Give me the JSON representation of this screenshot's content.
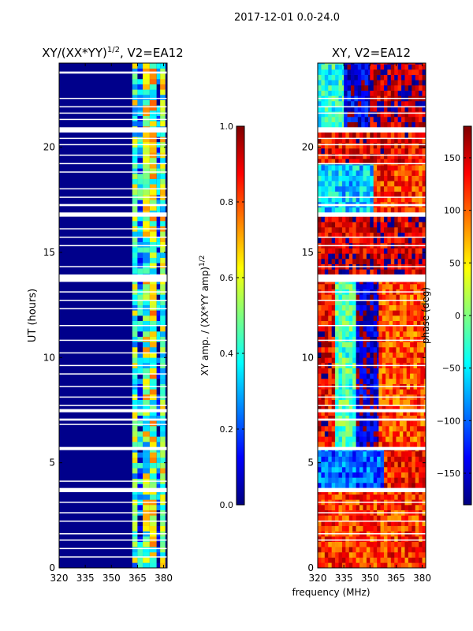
{
  "suptitle": "2017-12-01 0.0-24.0",
  "shared_xlabel": "frequency (MHz)",
  "colors": {
    "jet": [
      "#00007f",
      "#0000ff",
      "#007fff",
      "#00ffff",
      "#7fff7f",
      "#ffff00",
      "#ff7f00",
      "#ff0000",
      "#7f0000"
    ],
    "background_amp": "#00008b",
    "gap": "#ffffff"
  },
  "chart_data": [
    {
      "type": "heatmap",
      "title": "XY/(XX*YY)$^{1/2}$, V2=EA12",
      "title_display": {
        "base": "XY/(XX*YY)",
        "sup": "1/2",
        "rest": ", V2=EA12"
      },
      "xlabel": "",
      "ylabel": "UT (hours)",
      "xlim": [
        320,
        382
      ],
      "ylim": [
        0,
        24
      ],
      "xticks": [
        320,
        335,
        350,
        365,
        380
      ],
      "yticks": [
        0,
        5,
        10,
        15,
        20
      ],
      "colorbar": {
        "label": "XY amp. / (XX*YY amp)$^{1/2}$",
        "label_display": {
          "base": "XY amp. / (XX*YY amp)",
          "sup": "1/2"
        },
        "range": [
          0,
          1.0
        ],
        "ticks": [
          0.0,
          0.2,
          0.4,
          0.6,
          0.8,
          1.0
        ],
        "tick_labels": [
          "0.0",
          "0.2",
          "0.4",
          "0.6",
          "0.8",
          "1.0"
        ]
      },
      "gaps_hours": [
        [
          23.5,
          23.6
        ],
        [
          22.3,
          22.35
        ],
        [
          21.9,
          21.95
        ],
        [
          21.6,
          21.65
        ],
        [
          21.3,
          21.35
        ],
        [
          20.7,
          20.95
        ],
        [
          20.4,
          20.45
        ],
        [
          20.1,
          20.15
        ],
        [
          19.6,
          19.65
        ],
        [
          19.2,
          19.25
        ],
        [
          18.8,
          18.85
        ],
        [
          18.0,
          18.05
        ],
        [
          17.6,
          17.65
        ],
        [
          17.2,
          17.3
        ],
        [
          16.7,
          16.9
        ],
        [
          16.1,
          16.15
        ],
        [
          15.7,
          15.75
        ],
        [
          15.3,
          15.35
        ],
        [
          14.3,
          14.35
        ],
        [
          13.6,
          13.95
        ],
        [
          13.1,
          13.15
        ],
        [
          12.7,
          12.75
        ],
        [
          12.3,
          12.35
        ],
        [
          11.5,
          11.55
        ],
        [
          10.8,
          10.85
        ],
        [
          10.2,
          10.25
        ],
        [
          9.6,
          9.65
        ],
        [
          9.2,
          9.25
        ],
        [
          8.6,
          8.65
        ],
        [
          8.1,
          8.15
        ],
        [
          7.7,
          7.75
        ],
        [
          7.4,
          7.55
        ],
        [
          7.0,
          7.1
        ],
        [
          6.8,
          6.85
        ],
        [
          5.6,
          5.75
        ],
        [
          4.1,
          4.15
        ],
        [
          3.6,
          3.8
        ],
        [
          3.1,
          3.15
        ],
        [
          2.6,
          2.65
        ],
        [
          2.2,
          2.25
        ],
        [
          1.6,
          1.65
        ],
        [
          1.3,
          1.35
        ],
        [
          0.9,
          0.95
        ],
        [
          0.5,
          0.55
        ]
      ],
      "freq_bands_mhz": [
        {
          "from": 320,
          "to": 362,
          "level": 0.08
        },
        {
          "from": 362,
          "to": 365,
          "level": 0.45
        },
        {
          "from": 365,
          "to": 368,
          "level": 0.25
        },
        {
          "from": 368,
          "to": 372,
          "level": 0.5
        },
        {
          "from": 372,
          "to": 376,
          "level": 0.55
        },
        {
          "from": 376,
          "to": 378,
          "level": 0.2
        },
        {
          "from": 378,
          "to": 381,
          "level": 0.5
        },
        {
          "from": 381,
          "to": 382,
          "level": 0.1
        }
      ]
    },
    {
      "type": "heatmap",
      "title": "XY, V2=EA12",
      "xlabel": "frequency (MHz)",
      "ylabel": "",
      "xlim": [
        320,
        382
      ],
      "ylim": [
        0,
        24
      ],
      "xticks": [
        320,
        335,
        350,
        365,
        380
      ],
      "yticks": [
        0,
        5,
        10,
        15,
        20
      ],
      "colorbar": {
        "label": "phase (deg)",
        "range": [
          -180,
          180
        ],
        "ticks": [
          -150,
          -100,
          -50,
          0,
          50,
          100,
          150
        ],
        "tick_labels": [
          "−150",
          "−100",
          "−50",
          "0",
          "50",
          "100",
          "150"
        ]
      },
      "gaps_hours": [
        [
          22.3,
          22.35
        ],
        [
          21.9,
          21.95
        ],
        [
          21.6,
          21.65
        ],
        [
          20.7,
          20.95
        ],
        [
          20.4,
          20.45
        ],
        [
          20.1,
          20.15
        ],
        [
          19.6,
          19.65
        ],
        [
          19.2,
          19.25
        ],
        [
          17.6,
          17.65
        ],
        [
          17.2,
          17.3
        ],
        [
          16.7,
          16.9
        ],
        [
          15.7,
          15.75
        ],
        [
          15.3,
          15.35
        ],
        [
          14.3,
          14.35
        ],
        [
          13.6,
          13.95
        ],
        [
          13.1,
          13.15
        ],
        [
          12.7,
          12.75
        ],
        [
          11.5,
          11.55
        ],
        [
          10.8,
          10.85
        ],
        [
          9.6,
          9.65
        ],
        [
          8.6,
          8.65
        ],
        [
          8.1,
          8.15
        ],
        [
          7.7,
          7.75
        ],
        [
          7.4,
          7.55
        ],
        [
          7.0,
          7.1
        ],
        [
          5.6,
          5.75
        ],
        [
          3.6,
          3.8
        ],
        [
          3.1,
          3.15
        ],
        [
          2.6,
          2.65
        ],
        [
          2.2,
          2.25
        ],
        [
          1.6,
          1.65
        ],
        [
          1.3,
          1.35
        ]
      ],
      "phase_regions": [
        {
          "t_from": 0,
          "t_to": 3.6,
          "f_from": 320,
          "f_to": 382,
          "phase": 120
        },
        {
          "t_from": 3.8,
          "t_to": 5.6,
          "f_from": 320,
          "f_to": 358,
          "phase": -100
        },
        {
          "t_from": 3.8,
          "t_to": 5.6,
          "f_from": 358,
          "f_to": 382,
          "phase": 130
        },
        {
          "t_from": 5.75,
          "t_to": 13.6,
          "f_from": 320,
          "f_to": 330,
          "phase": 140
        },
        {
          "t_from": 5.75,
          "t_to": 13.6,
          "f_from": 330,
          "f_to": 342,
          "phase": -20
        },
        {
          "t_from": 5.75,
          "t_to": 13.6,
          "f_from": 342,
          "f_to": 355,
          "phase": -160
        },
        {
          "t_from": 5.75,
          "t_to": 13.6,
          "f_from": 355,
          "f_to": 382,
          "phase": 110
        },
        {
          "t_from": 13.95,
          "t_to": 16.7,
          "f_from": 320,
          "f_to": 382,
          "phase": 150
        },
        {
          "t_from": 16.9,
          "t_to": 19.2,
          "f_from": 320,
          "f_to": 352,
          "phase": -60
        },
        {
          "t_from": 16.9,
          "t_to": 19.2,
          "f_from": 352,
          "f_to": 382,
          "phase": 120
        },
        {
          "t_from": 19.2,
          "t_to": 20.7,
          "f_from": 320,
          "f_to": 382,
          "phase": 140
        },
        {
          "t_from": 20.95,
          "t_to": 24,
          "f_from": 320,
          "f_to": 335,
          "phase": -30
        },
        {
          "t_from": 20.95,
          "t_to": 24,
          "f_from": 335,
          "f_to": 350,
          "phase": -150
        },
        {
          "t_from": 20.95,
          "t_to": 24,
          "f_from": 350,
          "f_to": 382,
          "phase": 160
        }
      ]
    }
  ]
}
